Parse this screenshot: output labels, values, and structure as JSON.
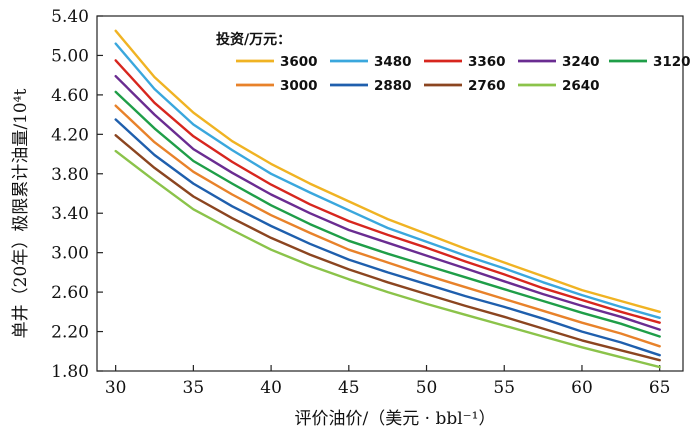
{
  "chart_data": {
    "type": "line",
    "title": "",
    "xlabel": "评价油价/（美元 · bbl⁻¹）",
    "ylabel": "单井（20年）极限累计油量/10⁴t",
    "xlim": [
      28.8,
      66.5
    ],
    "ylim": [
      1.8,
      5.4
    ],
    "x_ticks": [
      30,
      35,
      40,
      45,
      50,
      55,
      60,
      65
    ],
    "x_tick_labels": [
      "30",
      "35",
      "40",
      "45",
      "50",
      "55",
      "60",
      "65"
    ],
    "y_ticks": [
      1.8,
      2.2,
      2.6,
      3.0,
      3.4,
      3.8,
      4.2,
      4.6,
      5.0,
      5.4
    ],
    "y_tick_labels": [
      "1.80",
      "2.20",
      "2.60",
      "3.00",
      "3.40",
      "3.80",
      "4.20",
      "4.60",
      "5.00",
      "5.40"
    ],
    "grid": false,
    "legend": {
      "title": "投资/万元：",
      "position": "top-right"
    },
    "x": [
      30,
      32.5,
      35,
      37.5,
      40,
      42.5,
      45,
      47.5,
      50,
      52.5,
      55,
      57.5,
      60,
      62.5,
      65
    ],
    "series": [
      {
        "name": "3600",
        "color": "#f0b323",
        "values": [
          5.25,
          4.78,
          4.42,
          4.13,
          3.9,
          3.7,
          3.52,
          3.34,
          3.19,
          3.04,
          2.9,
          2.76,
          2.62,
          2.51,
          2.4
        ]
      },
      {
        "name": "3480",
        "color": "#3aa7dd",
        "values": [
          5.12,
          4.66,
          4.3,
          4.04,
          3.8,
          3.61,
          3.43,
          3.25,
          3.11,
          2.97,
          2.84,
          2.7,
          2.57,
          2.45,
          2.34
        ]
      },
      {
        "name": "3360",
        "color": "#d7261e",
        "values": [
          4.95,
          4.52,
          4.18,
          3.92,
          3.69,
          3.49,
          3.32,
          3.18,
          3.05,
          2.91,
          2.78,
          2.64,
          2.52,
          2.4,
          2.29
        ]
      },
      {
        "name": "3240",
        "color": "#6a2c91",
        "values": [
          4.79,
          4.4,
          4.05,
          3.81,
          3.59,
          3.4,
          3.23,
          3.1,
          2.97,
          2.84,
          2.71,
          2.58,
          2.46,
          2.35,
          2.22
        ]
      },
      {
        "name": "3120",
        "color": "#1f9e48",
        "values": [
          4.63,
          4.26,
          3.93,
          3.7,
          3.48,
          3.29,
          3.12,
          2.99,
          2.87,
          2.75,
          2.63,
          2.51,
          2.39,
          2.28,
          2.15
        ]
      },
      {
        "name": "3000",
        "color": "#e8822a",
        "values": [
          4.49,
          4.12,
          3.82,
          3.59,
          3.38,
          3.2,
          3.03,
          2.9,
          2.77,
          2.65,
          2.53,
          2.41,
          2.29,
          2.18,
          2.05
        ]
      },
      {
        "name": "2880",
        "color": "#1f5fad",
        "values": [
          4.35,
          3.99,
          3.7,
          3.47,
          3.27,
          3.09,
          2.93,
          2.8,
          2.68,
          2.56,
          2.45,
          2.33,
          2.2,
          2.09,
          1.96
        ]
      },
      {
        "name": "2760",
        "color": "#8b4520",
        "values": [
          4.19,
          3.86,
          3.57,
          3.35,
          3.15,
          2.98,
          2.83,
          2.7,
          2.58,
          2.46,
          2.35,
          2.23,
          2.11,
          2.01,
          1.91
        ]
      },
      {
        "name": "2640",
        "color": "#8bc34a",
        "values": [
          4.03,
          3.73,
          3.44,
          3.23,
          3.03,
          2.87,
          2.73,
          2.6,
          2.48,
          2.37,
          2.26,
          2.15,
          2.04,
          1.94,
          1.84
        ]
      }
    ]
  }
}
